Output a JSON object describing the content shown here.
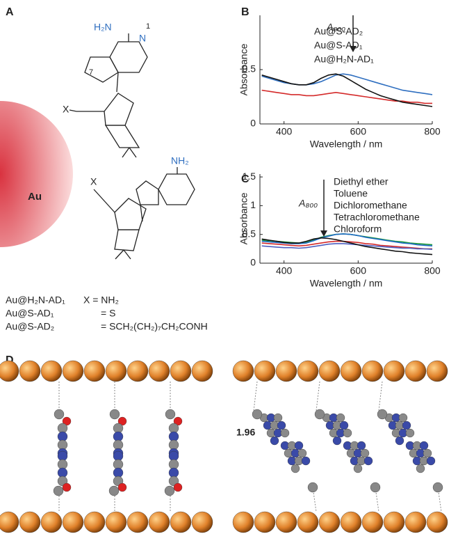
{
  "panels": {
    "a": "A",
    "b": "B",
    "c": "C",
    "d": "D"
  },
  "panel_a": {
    "metal": "Au",
    "structure_labels": [
      "H₂N",
      "N",
      "1",
      "7",
      "NH₂",
      "X",
      "X"
    ],
    "legend": [
      [
        "Au@H₂N-AD₁",
        "X = NH₂"
      ],
      [
        "Au@S-AD₁",
        "= S"
      ],
      [
        "Au@S-AD₂",
        "= SCH₂(CH₂)₇CH₂CONH"
      ]
    ]
  },
  "chart_data": [
    {
      "type": "line",
      "x_label": "Wavelength / nm",
      "y_label": "Absorbance",
      "annotation": "A₈₀₀",
      "xlim": [
        335,
        800
      ],
      "xticks": [
        400,
        600,
        800
      ],
      "ylim": [
        0,
        1
      ],
      "yticks": [
        0,
        0.5
      ],
      "x": [
        340,
        360,
        380,
        400,
        420,
        440,
        460,
        480,
        500,
        520,
        540,
        560,
        580,
        600,
        620,
        640,
        660,
        680,
        700,
        720,
        740,
        760,
        780,
        800
      ],
      "series": [
        {
          "name": "Au@S-AD₂",
          "color": "#2f6fc0",
          "values": [
            0.44,
            0.42,
            0.4,
            0.38,
            0.37,
            0.36,
            0.36,
            0.37,
            0.39,
            0.42,
            0.45,
            0.46,
            0.45,
            0.43,
            0.41,
            0.39,
            0.37,
            0.35,
            0.33,
            0.31,
            0.3,
            0.29,
            0.28,
            0.27
          ]
        },
        {
          "name": "Au@S-AD₁",
          "color": "#d42a2a",
          "values": [
            0.31,
            0.3,
            0.29,
            0.28,
            0.27,
            0.27,
            0.26,
            0.26,
            0.27,
            0.28,
            0.29,
            0.28,
            0.27,
            0.26,
            0.25,
            0.24,
            0.23,
            0.22,
            0.21,
            0.21,
            0.2,
            0.2,
            0.19,
            0.19
          ]
        },
        {
          "name": "Au@H₂N-AD₁",
          "color": "#111111",
          "values": [
            0.45,
            0.43,
            0.41,
            0.39,
            0.37,
            0.36,
            0.36,
            0.38,
            0.42,
            0.45,
            0.46,
            0.44,
            0.4,
            0.36,
            0.32,
            0.29,
            0.26,
            0.24,
            0.22,
            0.2,
            0.19,
            0.18,
            0.17,
            0.16
          ]
        }
      ]
    },
    {
      "type": "line",
      "x_label": "Wavelength / nm",
      "y_label": "Absorbance",
      "annotation": "A₈₀₀",
      "xlim": [
        335,
        800
      ],
      "xticks": [
        400,
        600,
        800
      ],
      "ylim": [
        0,
        1.55
      ],
      "yticks": [
        0,
        0.5,
        1,
        1.5
      ],
      "x": [
        340,
        360,
        380,
        400,
        420,
        440,
        460,
        480,
        500,
        520,
        540,
        560,
        580,
        600,
        620,
        640,
        660,
        680,
        700,
        720,
        740,
        760,
        780,
        800
      ],
      "series": [
        {
          "name": "Diethyl ether",
          "color": "#1f9a3a",
          "values": [
            0.4,
            0.39,
            0.38,
            0.37,
            0.36,
            0.35,
            0.36,
            0.4,
            0.45,
            0.48,
            0.5,
            0.51,
            0.5,
            0.48,
            0.46,
            0.44,
            0.42,
            0.4,
            0.38,
            0.37,
            0.35,
            0.34,
            0.33,
            0.32
          ]
        },
        {
          "name": "Toluene",
          "color": "#1d6ac4",
          "values": [
            0.38,
            0.37,
            0.36,
            0.35,
            0.34,
            0.34,
            0.35,
            0.39,
            0.44,
            0.47,
            0.5,
            0.51,
            0.5,
            0.48,
            0.45,
            0.43,
            0.41,
            0.39,
            0.37,
            0.35,
            0.34,
            0.32,
            0.31,
            0.3
          ]
        },
        {
          "name": "Dichloromethane",
          "color": "#d42a2a",
          "values": [
            0.35,
            0.34,
            0.33,
            0.32,
            0.31,
            0.3,
            0.31,
            0.33,
            0.35,
            0.37,
            0.38,
            0.38,
            0.37,
            0.36,
            0.34,
            0.33,
            0.31,
            0.3,
            0.29,
            0.28,
            0.27,
            0.26,
            0.25,
            0.25
          ]
        },
        {
          "name": "Tetrachloromethane",
          "color": "#4d5fc0",
          "values": [
            0.3,
            0.29,
            0.28,
            0.27,
            0.27,
            0.26,
            0.27,
            0.29,
            0.31,
            0.33,
            0.34,
            0.34,
            0.33,
            0.32,
            0.31,
            0.3,
            0.29,
            0.28,
            0.27,
            0.26,
            0.26,
            0.25,
            0.25,
            0.24
          ]
        },
        {
          "name": "Chloroform",
          "color": "#111111",
          "values": [
            0.42,
            0.4,
            0.38,
            0.36,
            0.35,
            0.35,
            0.38,
            0.42,
            0.44,
            0.43,
            0.41,
            0.38,
            0.35,
            0.32,
            0.29,
            0.27,
            0.25,
            0.23,
            0.21,
            0.2,
            0.18,
            0.17,
            0.16,
            0.15
          ]
        }
      ]
    }
  ],
  "panel_d": {
    "distance_label": "1.96"
  }
}
